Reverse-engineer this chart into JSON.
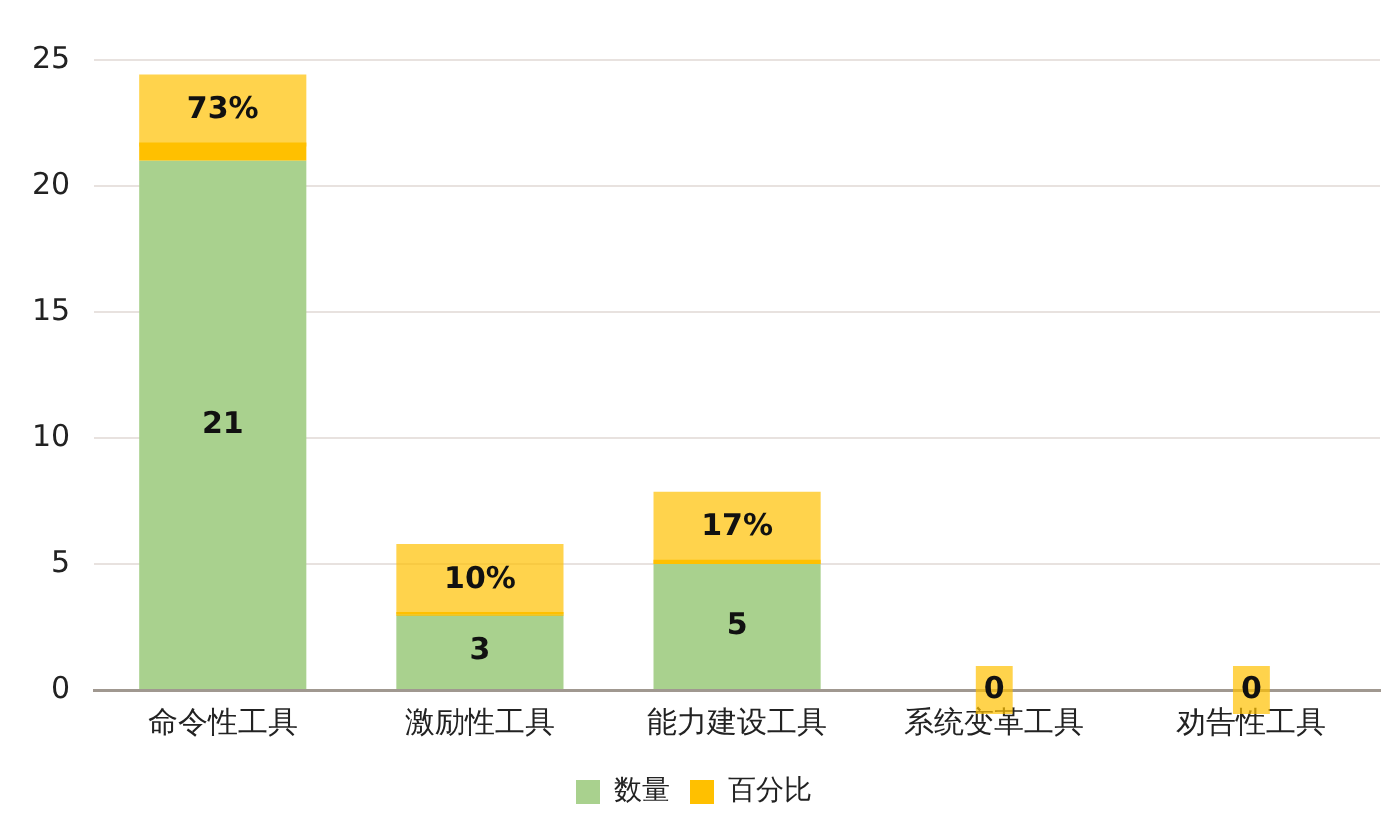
{
  "chart_data": {
    "type": "bar",
    "stacked": true,
    "categories": [
      "命令性工具",
      "激励性工具",
      "能力建设工具",
      "系统变革工具",
      "劝告性工具"
    ],
    "series": [
      {
        "name": "数量",
        "color": "#a9d18e",
        "values": [
          21,
          3,
          5,
          0,
          0
        ],
        "value_labels": [
          "21",
          "3",
          "5",
          null,
          null
        ]
      },
      {
        "name": "百分比",
        "color": "#ffc000",
        "values": [
          0.73,
          0.1,
          0.17,
          0,
          0
        ],
        "value_labels": [
          "73%",
          "10%",
          "17%",
          "0",
          "0"
        ]
      }
    ],
    "ylim": [
      0,
      25
    ],
    "yticks": [
      0,
      5,
      10,
      15,
      20,
      25
    ],
    "grid": "y",
    "legend": "bottom"
  }
}
